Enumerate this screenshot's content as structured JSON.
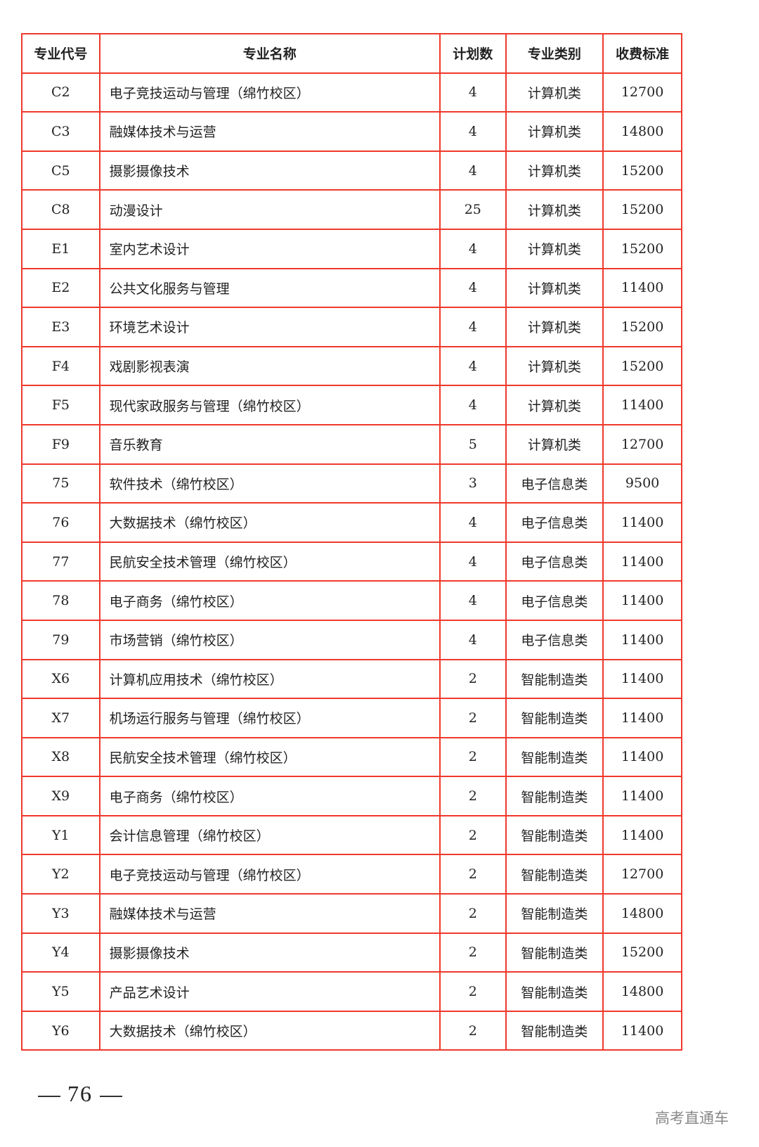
{
  "table": {
    "headers": [
      "专业代号",
      "专业名称",
      "计划数",
      "专业类别",
      "收费标准"
    ],
    "rows": [
      [
        "C2",
        "电子竞技运动与管理（绵竹校区）",
        "4",
        "计算机类",
        "12700"
      ],
      [
        "C3",
        "融媒体技术与运营",
        "4",
        "计算机类",
        "14800"
      ],
      [
        "C5",
        "摄影摄像技术",
        "4",
        "计算机类",
        "15200"
      ],
      [
        "C8",
        "动漫设计",
        "25",
        "计算机类",
        "15200"
      ],
      [
        "E1",
        "室内艺术设计",
        "4",
        "计算机类",
        "15200"
      ],
      [
        "E2",
        "公共文化服务与管理",
        "4",
        "计算机类",
        "11400"
      ],
      [
        "E3",
        "环境艺术设计",
        "4",
        "计算机类",
        "15200"
      ],
      [
        "F4",
        "戏剧影视表演",
        "4",
        "计算机类",
        "15200"
      ],
      [
        "F5",
        "现代家政服务与管理（绵竹校区）",
        "4",
        "计算机类",
        "11400"
      ],
      [
        "F9",
        "音乐教育",
        "5",
        "计算机类",
        "12700"
      ],
      [
        "75",
        "软件技术（绵竹校区）",
        "3",
        "电子信息类",
        "9500"
      ],
      [
        "76",
        "大数据技术（绵竹校区）",
        "4",
        "电子信息类",
        "11400"
      ],
      [
        "77",
        "民航安全技术管理（绵竹校区）",
        "4",
        "电子信息类",
        "11400"
      ],
      [
        "78",
        "电子商务（绵竹校区）",
        "4",
        "电子信息类",
        "11400"
      ],
      [
        "79",
        "市场营销（绵竹校区）",
        "4",
        "电子信息类",
        "11400"
      ],
      [
        "X6",
        "计算机应用技术（绵竹校区）",
        "2",
        "智能制造类",
        "11400"
      ],
      [
        "X7",
        "机场运行服务与管理（绵竹校区）",
        "2",
        "智能制造类",
        "11400"
      ],
      [
        "X8",
        "民航安全技术管理（绵竹校区）",
        "2",
        "智能制造类",
        "11400"
      ],
      [
        "X9",
        "电子商务（绵竹校区）",
        "2",
        "智能制造类",
        "11400"
      ],
      [
        "Y1",
        "会计信息管理（绵竹校区）",
        "2",
        "智能制造类",
        "11400"
      ],
      [
        "Y2",
        "电子竞技运动与管理（绵竹校区）",
        "2",
        "智能制造类",
        "12700"
      ],
      [
        "Y3",
        "融媒体技术与运营",
        "2",
        "智能制造类",
        "14800"
      ],
      [
        "Y4",
        "摄影摄像技术",
        "2",
        "智能制造类",
        "15200"
      ],
      [
        "Y5",
        "产品艺术设计",
        "2",
        "智能制造类",
        "14800"
      ],
      [
        "Y6",
        "大数据技术（绵竹校区）",
        "2",
        "智能制造类",
        "11400"
      ]
    ]
  },
  "page_number": "76",
  "watermark": "高考直通车",
  "colors": {
    "border": "#f0392b"
  }
}
